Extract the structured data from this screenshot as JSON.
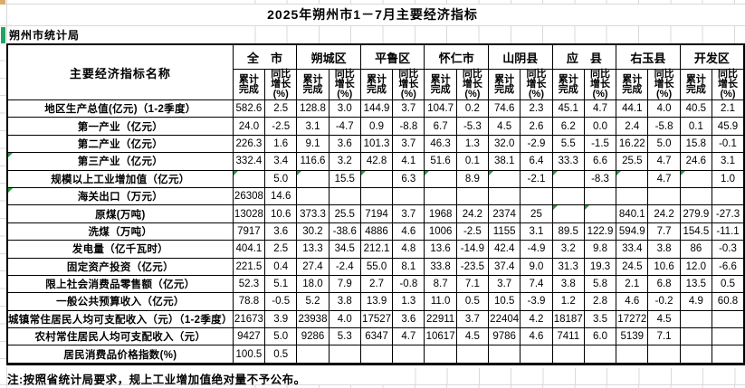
{
  "header": {
    "title": "2025年朔州市1－7月主要经济指标"
  },
  "agency": {
    "label": "朔州市统计局"
  },
  "footer": {
    "note": "注:按照省统计局要求，规上工业增加值绝对量不予公布。"
  },
  "colors": {
    "error_triangle_green": "#1e9e3e",
    "agency_marker_green": "#21a366",
    "corner_fill_tan": "#d8ae6b",
    "gridline_gray": "#d9d9d9",
    "table_border": "#000000"
  },
  "table": {
    "indicator_header": "主要经济指标名称",
    "subheaders": {
      "cumulative": "累计\n完成",
      "yoy": "同比\n增长\n(%)"
    },
    "regions": [
      "全　市",
      "朔城区",
      "平鲁区",
      "怀仁市",
      "山阴县",
      "应　县",
      "右玉县",
      "开发区"
    ],
    "rows": [
      {
        "label": "地区生产总值(亿元)（1-2季度）",
        "indent": 0,
        "values": [
          "582.6",
          "2.5",
          "128.8",
          "3.0",
          "144.9",
          "3.7",
          "104.7",
          "0.2",
          "74.6",
          "2.3",
          "45.1",
          "4.7",
          "44.1",
          "4.0",
          "40.5",
          "2.1"
        ]
      },
      {
        "label": "第一产业（亿元）",
        "indent": 2,
        "values": [
          "24.0",
          "-2.5",
          "3.1",
          "-4.7",
          "0.9",
          "-8.8",
          "6.7",
          "-5.3",
          "4.5",
          "2.6",
          "6.2",
          "0.0",
          "2.4",
          "-5.8",
          "0.1",
          "45.9"
        ]
      },
      {
        "label": "第二产业（亿元）",
        "indent": 2,
        "values": [
          "226.3",
          "1.6",
          "9.1",
          "3.6",
          "101.3",
          "3.7",
          "46.3",
          "1.3",
          "32.0",
          "-2.9",
          "5.5",
          "-1.5",
          "16.22",
          "5.0",
          "15.8",
          "-0.1"
        ]
      },
      {
        "label": "第三产业（亿元）",
        "indent": 1,
        "label_mark": true,
        "values": [
          "332.4",
          "3.4",
          "116.6",
          "3.2",
          "42.8",
          "4.1",
          "51.6",
          "0.1",
          "38.1",
          "6.4",
          "33.3",
          "6.6",
          "25.5",
          "4.7",
          "24.6",
          "3.1"
        ]
      },
      {
        "label": "规模以上工业增加值（亿元）",
        "indent": 0,
        "green_marks": [
          0,
          2,
          4,
          6,
          8,
          10,
          12,
          14
        ],
        "values": [
          "",
          "5.0",
          "",
          "15.5",
          "",
          "6.3",
          "",
          "8.9",
          "",
          "-2.1",
          "",
          "-8.3",
          "",
          "4.7",
          "",
          "1.0"
        ]
      },
      {
        "label": "海关出口（万元）",
        "indent": 0,
        "label_mark": true,
        "values": [
          "26308",
          "14.6",
          "",
          "",
          "",
          "",
          "",
          "",
          "",
          "",
          "",
          "",
          "",
          "",
          "",
          ""
        ]
      },
      {
        "label": "原煤(万吨)",
        "indent": 0,
        "green_marks": [
          10,
          11
        ],
        "values": [
          "13028",
          "10.6",
          "373.3",
          "25.5",
          "7194",
          "3.7",
          "1968",
          "24.2",
          "2374",
          "25",
          "",
          "",
          "840.1",
          "24.2",
          "279.9",
          "-27.3"
        ]
      },
      {
        "label": "洗煤（万吨）",
        "indent": 0,
        "values": [
          "7917",
          "3.6",
          "30.2",
          "-38.6",
          "4886",
          "4.6",
          "1006",
          "-2.5",
          "1155",
          "3.1",
          "89.5",
          "122.9",
          "594.9",
          "7.7",
          "154.5",
          "-11.1"
        ]
      },
      {
        "label": "发电量（亿千瓦时）",
        "indent": 0,
        "values": [
          "404.1",
          "2.5",
          "13.3",
          "34.5",
          "212.1",
          "4.8",
          "13.6",
          "-14.9",
          "42.4",
          "-4.9",
          "3.2",
          "9.8",
          "33.4",
          "3.8",
          "86",
          "-0.3"
        ]
      },
      {
        "label": "固定资产投资（亿元）",
        "indent": 0,
        "values": [
          "221.5",
          "0.4",
          "27.4",
          "-2.4",
          "55.0",
          "8.1",
          "33.8",
          "-23.5",
          "37.4",
          "9.0",
          "31.3",
          "19.3",
          "24.5",
          "10.6",
          "12.0",
          "-6.6"
        ]
      },
      {
        "label": "限上社会消费品零售额（亿元）",
        "indent": 0,
        "values": [
          "52.3",
          "5.1",
          "18.0",
          "7.9",
          "2.7",
          "-0.8",
          "8.7",
          "7.1",
          "3.7",
          "7.4",
          "3.8",
          "5.8",
          "2.1",
          "6.8",
          "13.5",
          "0.5"
        ]
      },
      {
        "label": "一般公共预算收入（亿元）",
        "indent": 0,
        "values": [
          "78.8",
          "-0.5",
          "5.2",
          "3.8",
          "13.9",
          "1.3",
          "11.0",
          "0.5",
          "10.5",
          "-3.9",
          "1.2",
          "2.8",
          "4.6",
          "-0.2",
          "4.9",
          "60.8"
        ]
      },
      {
        "label": "城镇常住居民人均可支配收入（元）（1-2季度）",
        "indent": 0,
        "values": [
          "21673",
          "3.9",
          "23938",
          "4.0",
          "17527",
          "3.6",
          "22911",
          "3.7",
          "22404",
          "4.2",
          "18187",
          "3.5",
          "17272",
          "4.5",
          "",
          ""
        ]
      },
      {
        "label": "农村常住居民人均可支配收入（元）",
        "indent": 0,
        "values": [
          "9427",
          "5.0",
          "9286",
          "5.3",
          "6347",
          "4.7",
          "10617",
          "4.5",
          "9786",
          "4.6",
          "7411",
          "6.0",
          "5139",
          "7.1",
          "",
          ""
        ]
      },
      {
        "label": "居民消费品价格指数(%)",
        "indent": 0,
        "values": [
          "100.5",
          "0.5",
          "",
          "",
          "",
          "",
          "",
          "",
          "",
          "",
          "",
          "",
          "",
          "",
          "",
          ""
        ]
      }
    ]
  }
}
